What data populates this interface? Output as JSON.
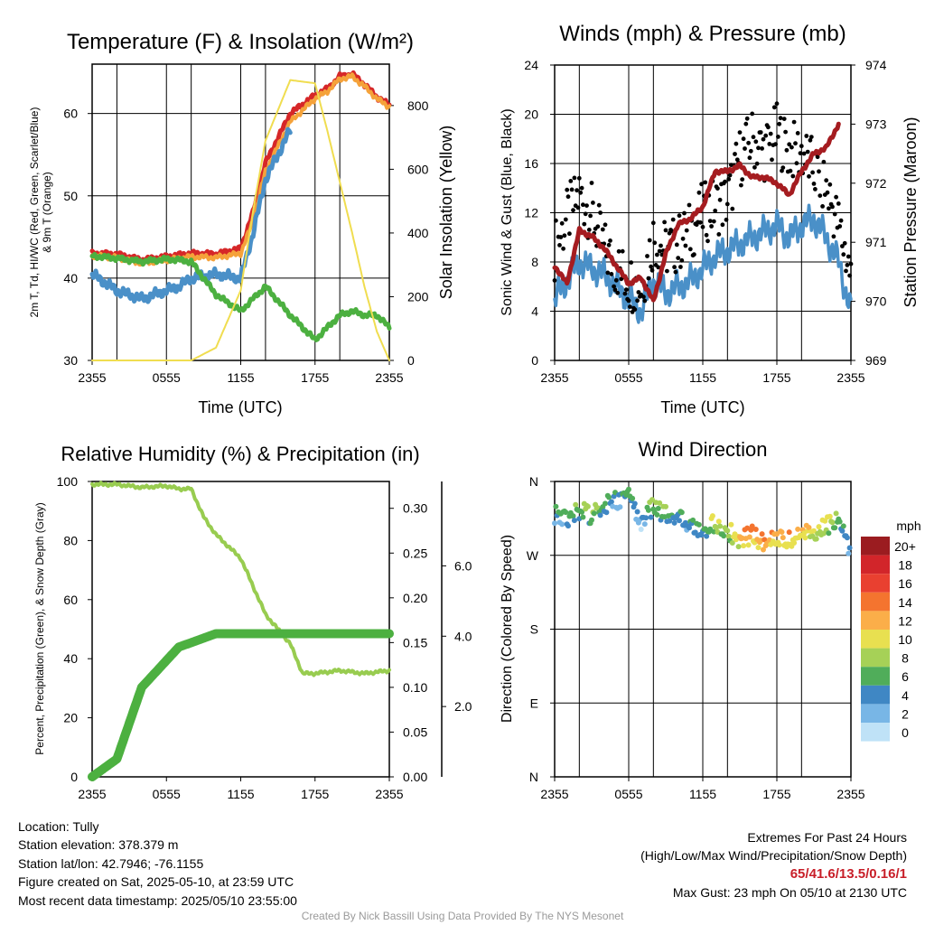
{
  "chart_data": [
    {
      "type": "line",
      "title": "Temperature (F) & Insolation (W/m²)",
      "xlabel": "Time (UTC)",
      "ylabel": "2m T, Td, HI/WC (Red, Green, Scarlet/Blue) & 9m T (Orange)",
      "ylabel_line1": "2m T, Td, HI/WC (Red, Green, Scarlet/Blue)",
      "ylabel_line2": "& 9m T (Orange)",
      "y2label": "Solar Insolation (Yellow)",
      "x_ticks": [
        "2355",
        "0555",
        "1155",
        "1755",
        "2355"
      ],
      "ylim": [
        30,
        66
      ],
      "y_ticks": [
        30,
        40,
        50,
        60
      ],
      "y2lim": [
        0,
        930
      ],
      "y2_ticks": [
        0,
        200,
        400,
        600,
        800
      ],
      "grid": true,
      "x_hours": [
        0,
        2,
        4,
        6,
        7,
        8,
        10,
        12,
        13,
        14,
        16,
        18,
        19,
        20,
        21,
        22,
        23,
        24
      ],
      "series": [
        {
          "color": "#d62728",
          "values": [
            43,
            42.9,
            42.2,
            42.6,
            42.8,
            43,
            42.9,
            43.6,
            48,
            54,
            60,
            62.2,
            63,
            64.5,
            64.8,
            63.5,
            62,
            61
          ]
        },
        {
          "color": "#f5a23a",
          "values": [
            42.7,
            42.5,
            41.8,
            42.2,
            42.4,
            42.6,
            42.5,
            43,
            47,
            53,
            59,
            61.8,
            62.7,
            64.2,
            64.5,
            63.3,
            61.8,
            60.8
          ]
        },
        {
          "color": "#4a90c8",
          "values": [
            40.5,
            38.5,
            37.5,
            38.5,
            39,
            40,
            40.5,
            40,
            45.5,
            52,
            58
          ]
        },
        {
          "color": "#4cb040",
          "values": [
            42.7,
            42.4,
            42,
            42.3,
            42.2,
            42,
            38,
            36,
            37.5,
            39,
            35.5,
            32.5,
            34,
            35.5,
            36,
            35.5,
            35.5,
            34
          ]
        },
        {
          "color": "#f0dd50",
          "axis": "right",
          "values": [
            0,
            0,
            0,
            0,
            0,
            0,
            40,
            220,
            470,
            690,
            880,
            870,
            720,
            560,
            400,
            230,
            90,
            0
          ]
        }
      ]
    },
    {
      "type": "line",
      "title": "Winds (mph) & Pressure (mb)",
      "xlabel": "Time (UTC)",
      "ylabel": "Sonic Wind & Gust (Blue, Black)",
      "y2label": "Station Pressure (Maroon)",
      "x_ticks": [
        "2355",
        "0555",
        "1155",
        "1755",
        "2355"
      ],
      "ylim": [
        0,
        24
      ],
      "y_ticks": [
        0,
        4,
        8,
        12,
        16,
        20,
        24
      ],
      "y2lim": [
        969,
        974
      ],
      "y2_ticks": [
        969,
        970,
        971,
        972,
        973,
        974
      ],
      "grid": true,
      "x_hours": [
        0,
        1,
        2,
        3,
        4,
        5,
        6,
        7,
        8,
        9,
        10,
        11,
        12,
        13,
        14,
        15,
        16,
        17,
        18,
        19,
        20,
        21,
        22,
        23,
        24
      ],
      "series": [
        {
          "name": "wind",
          "color": "#4a90c8",
          "values": [
            5,
            6.5,
            8,
            7.5,
            7,
            6,
            5,
            4,
            6.5,
            5.5,
            6,
            6.5,
            7.5,
            8.5,
            9,
            9.5,
            10,
            10.5,
            11,
            10,
            11,
            11.5,
            10,
            8,
            4
          ]
        },
        {
          "name": "gust",
          "color": "#000000",
          "values": [
            9,
            11.5,
            13.5,
            12,
            9,
            7.5,
            6.5,
            6,
            10,
            9,
            9.5,
            10.5,
            12,
            12.5,
            13,
            16.5,
            18,
            17,
            18.5,
            17,
            17,
            15.5,
            14,
            11,
            7
          ]
        },
        {
          "name": "pressure",
          "color": "#a51c20",
          "axis": "right",
          "values": [
            970.6,
            970.3,
            971.2,
            971.1,
            970.9,
            970.6,
            970.3,
            970.4,
            970.0,
            970.8,
            971.3,
            971.4,
            971.6,
            972.2,
            972.2,
            972.3,
            972.1,
            972.1,
            972.0,
            971.8,
            972.2,
            972.5,
            972.6,
            973.0
          ]
        }
      ]
    },
    {
      "type": "line",
      "title": "Relative Humidity (%) & Precipitation (in)",
      "ylabel": "Percent, Precipitation (Green), & Snow Depth (Gray)",
      "x_ticks": [
        "2355",
        "0555",
        "1155",
        "1755",
        "2355"
      ],
      "ylim": [
        0,
        100
      ],
      "y_ticks": [
        0,
        20,
        40,
        60,
        80,
        100
      ],
      "y2lim": [
        0,
        0.33
      ],
      "y2_ticks": [
        "0.00",
        "0.05",
        "0.10",
        "0.15",
        "0.20",
        "0.25",
        "0.30"
      ],
      "y3_ticks": [
        "2.0",
        "4.0",
        "6.0"
      ],
      "y3_values": [
        2,
        4,
        6
      ],
      "y3lim": [
        0,
        8.4
      ],
      "grid": false,
      "x_hours": [
        0,
        2,
        4,
        6,
        7,
        8,
        9,
        10,
        12,
        14,
        16,
        17,
        18,
        20,
        22,
        24
      ],
      "series": [
        {
          "name": "rh",
          "color": "#98cc50",
          "values": [
            99,
            99,
            98,
            98.5,
            97.5,
            97.5,
            88,
            82,
            74,
            55,
            45,
            35,
            35,
            36,
            35,
            36
          ]
        },
        {
          "name": "precip",
          "color": "#4cb040",
          "values": [
            0,
            0.02,
            0.1,
            0.13,
            0.145,
            0.15,
            0.155,
            0.16,
            0.16,
            0.16,
            0.16,
            0.16,
            0.16,
            0.16,
            0.16,
            0.16
          ]
        }
      ]
    },
    {
      "type": "scatter",
      "title": "Wind Direction",
      "ylabel": "Direction (Colored By Speed)",
      "x_ticks": [
        "2355",
        "0555",
        "1155",
        "1755",
        "2355"
      ],
      "y_tick_labels": [
        "N",
        "E",
        "S",
        "W",
        "N"
      ],
      "ylim": [
        0,
        360
      ],
      "grid": true,
      "legend_title": "mph",
      "legend_labels": [
        "20+",
        "18",
        "16",
        "14",
        "12",
        "10",
        "8",
        "6",
        "4",
        "2",
        "0"
      ],
      "legend_colors": [
        "#9b1c20",
        "#d2252a",
        "#e94030",
        "#f4742f",
        "#fbae49",
        "#e8e050",
        "#a6d157",
        "#50ad5a",
        "#3f87c4",
        "#78b6e6",
        "#bfe2f7"
      ],
      "points_hours": [
        0,
        1,
        2,
        3,
        4,
        5,
        6,
        7,
        8,
        9,
        10,
        11,
        12,
        13,
        14,
        15,
        16,
        17,
        18,
        19,
        20,
        21,
        22,
        23,
        24
      ],
      "points_dir": [
        320,
        315,
        325,
        318,
        330,
        338,
        340,
        310,
        330,
        320,
        315,
        305,
        300,
        310,
        300,
        290,
        295,
        285,
        290,
        290,
        300,
        295,
        305,
        315,
        273
      ],
      "points_speed": [
        4,
        5,
        6,
        7,
        6,
        3,
        5,
        2,
        7,
        6,
        4,
        4,
        5,
        9,
        8,
        11,
        12,
        13,
        10,
        12,
        11,
        9,
        8,
        6,
        3
      ]
    }
  ],
  "info": {
    "location": "Location: Tully",
    "elevation": "Station elevation: 378.379 m",
    "latlon": "Station lat/lon: 42.7946; -76.1155",
    "created": "Figure created on Sat, 2025-05-10, at 23:59 UTC",
    "recent": "Most recent data timestamp: 2025/05/10 23:55:00"
  },
  "extremes": {
    "title": "Extremes For Past 24 Hours",
    "subtitle": "(High/Low/Max Wind/Precipitation/Snow Depth)",
    "values": "65/41.6/13.5/0.16/1",
    "gust": "Max Gust: 23 mph On 05/10 at 2130 UTC"
  },
  "footer": "Created By Nick Bassill Using Data Provided By The NYS Mesonet"
}
